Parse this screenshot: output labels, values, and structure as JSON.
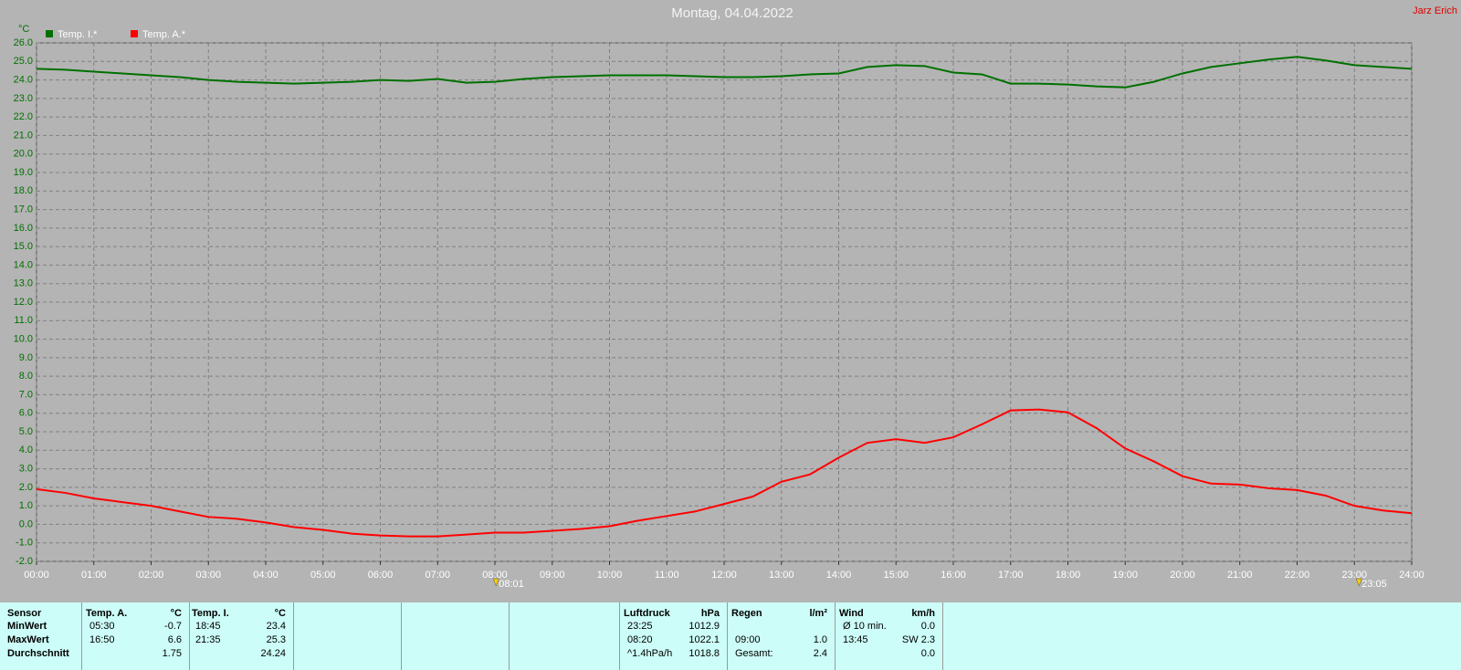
{
  "chart_data": {
    "type": "line",
    "title": "Montag, 04.04.2022",
    "author": "Jarz Erich",
    "y_label": "°C",
    "x": [
      0,
      0.5,
      1,
      1.5,
      2,
      2.5,
      3,
      3.5,
      4,
      4.5,
      5,
      5.5,
      6,
      6.5,
      7,
      7.5,
      8,
      8.5,
      9,
      9.5,
      10,
      10.5,
      11,
      11.5,
      12,
      12.5,
      13,
      13.5,
      14,
      14.5,
      15,
      15.5,
      16,
      16.5,
      17,
      17.5,
      18,
      18.5,
      19,
      19.5,
      20,
      20.5,
      21,
      21.5,
      22,
      22.5,
      23,
      23.5,
      24
    ],
    "series": [
      {
        "name": "Temp. I.*",
        "color": "#007000",
        "values": [
          24.6,
          24.55,
          24.45,
          24.35,
          24.25,
          24.15,
          24.0,
          23.9,
          23.85,
          23.8,
          23.85,
          23.9,
          24.0,
          23.95,
          24.05,
          23.85,
          23.9,
          24.05,
          24.15,
          24.2,
          24.25,
          24.25,
          24.25,
          24.2,
          24.15,
          24.15,
          24.2,
          24.3,
          24.35,
          24.7,
          24.8,
          24.75,
          24.4,
          24.3,
          23.8,
          23.8,
          23.75,
          23.65,
          23.6,
          23.9,
          24.35,
          24.7,
          24.9,
          25.1,
          25.25,
          25.05,
          24.8,
          24.7,
          24.6
        ]
      },
      {
        "name": "Temp. A.*",
        "color": "#ff0000",
        "values": [
          1.9,
          1.7,
          1.4,
          1.2,
          1.0,
          0.7,
          0.4,
          0.3,
          0.1,
          -0.15,
          -0.3,
          -0.5,
          -0.6,
          -0.65,
          -0.65,
          -0.55,
          -0.45,
          -0.45,
          -0.35,
          -0.25,
          -0.1,
          0.2,
          0.45,
          0.7,
          1.1,
          1.5,
          2.3,
          2.7,
          3.6,
          4.4,
          4.6,
          4.4,
          4.7,
          5.4,
          6.15,
          6.2,
          6.05,
          5.2,
          4.1,
          3.4,
          2.6,
          2.2,
          2.15,
          1.95,
          1.85,
          1.55,
          1.0,
          0.75,
          0.6
        ]
      }
    ],
    "xlim": [
      0,
      24
    ],
    "xticks": [
      {
        "value": 0,
        "label": "00:00"
      },
      {
        "value": 1,
        "label": "01:00"
      },
      {
        "value": 2,
        "label": "02:00"
      },
      {
        "value": 3,
        "label": "03:00"
      },
      {
        "value": 4,
        "label": "04:00"
      },
      {
        "value": 5,
        "label": "05:00"
      },
      {
        "value": 6,
        "label": "06:00"
      },
      {
        "value": 7,
        "label": "07:00"
      },
      {
        "value": 8,
        "label": "08:00"
      },
      {
        "value": 9,
        "label": "09:00"
      },
      {
        "value": 10,
        "label": "10:00"
      },
      {
        "value": 11,
        "label": "11:00"
      },
      {
        "value": 12,
        "label": "12:00"
      },
      {
        "value": 13,
        "label": "13:00"
      },
      {
        "value": 14,
        "label": "14:00"
      },
      {
        "value": 15,
        "label": "15:00"
      },
      {
        "value": 16,
        "label": "16:00"
      },
      {
        "value": 17,
        "label": "17:00"
      },
      {
        "value": 18,
        "label": "18:00"
      },
      {
        "value": 19,
        "label": "19:00"
      },
      {
        "value": 20,
        "label": "20:00"
      },
      {
        "value": 21,
        "label": "21:00"
      },
      {
        "value": 22,
        "label": "22:00"
      },
      {
        "value": 23,
        "label": "23:00"
      },
      {
        "value": 24,
        "label": "24:00"
      }
    ],
    "ylim": [
      -2,
      26
    ],
    "yticks": [
      {
        "value": -2,
        "label": "-2.0"
      },
      {
        "value": -1,
        "label": "-1.0"
      },
      {
        "value": 0,
        "label": "0.0"
      },
      {
        "value": 1,
        "label": "1.0"
      },
      {
        "value": 2,
        "label": "2.0"
      },
      {
        "value": 3,
        "label": "3.0"
      },
      {
        "value": 4,
        "label": "4.0"
      },
      {
        "value": 5,
        "label": "5.0"
      },
      {
        "value": 6,
        "label": "6.0"
      },
      {
        "value": 7,
        "label": "7.0"
      },
      {
        "value": 8,
        "label": "8.0"
      },
      {
        "value": 9,
        "label": "9.0"
      },
      {
        "value": 10,
        "label": "10.0"
      },
      {
        "value": 11,
        "label": "11.0"
      },
      {
        "value": 12,
        "label": "12.0"
      },
      {
        "value": 13,
        "label": "13.0"
      },
      {
        "value": 14,
        "label": "14.0"
      },
      {
        "value": 15,
        "label": "15.0"
      },
      {
        "value": 16,
        "label": "16.0"
      },
      {
        "value": 17,
        "label": "17.0"
      },
      {
        "value": 18,
        "label": "18.0"
      },
      {
        "value": 19,
        "label": "19.0"
      },
      {
        "value": 20,
        "label": "20.0"
      },
      {
        "value": 21,
        "label": "21.0"
      },
      {
        "value": 22,
        "label": "22.0"
      },
      {
        "value": 23,
        "label": "23.0"
      },
      {
        "value": 24,
        "label": "24.0"
      },
      {
        "value": 25,
        "label": "25.0"
      },
      {
        "value": 26,
        "label": "26.0"
      }
    ],
    "markers": [
      {
        "value": 8.02,
        "label": "08:01"
      },
      {
        "value": 23.08,
        "label": "23:05"
      }
    ],
    "grid": true
  },
  "stats_table": {
    "row_labels": [
      "Sensor",
      "MinWert",
      "MaxWert",
      "Durchschnitt"
    ],
    "columns": [
      {
        "header": [
          "Temp. A.",
          "°C"
        ],
        "rows": [
          [
            "05:30",
            "-0.7"
          ],
          [
            "16:50",
            "6.6"
          ],
          [
            null,
            "1.75"
          ]
        ]
      },
      {
        "header": [
          "Temp. I.",
          "°C"
        ],
        "rows": [
          [
            "18:45",
            "23.4"
          ],
          [
            "21:35",
            "25.3"
          ],
          [
            null,
            "24.24"
          ]
        ]
      },
      {
        "header": [
          "Luftdruck",
          "hPa"
        ],
        "rows": [
          [
            "23:25",
            "1012.9"
          ],
          [
            "08:20",
            "1022.1"
          ],
          [
            "^1.4hPa/h",
            "1018.8"
          ]
        ]
      },
      {
        "header": [
          "Regen",
          "l/m²"
        ],
        "rows": [
          [
            null,
            null
          ],
          [
            "09:00",
            "1.0"
          ],
          [
            "Gesamt:",
            "2.4"
          ]
        ]
      },
      {
        "header": [
          "Wind",
          "km/h"
        ],
        "rows": [
          [
            "Ø 10 min.",
            "0.0"
          ],
          [
            "13:45",
            "SW 2.3"
          ],
          [
            null,
            "0.0"
          ]
        ]
      }
    ]
  }
}
